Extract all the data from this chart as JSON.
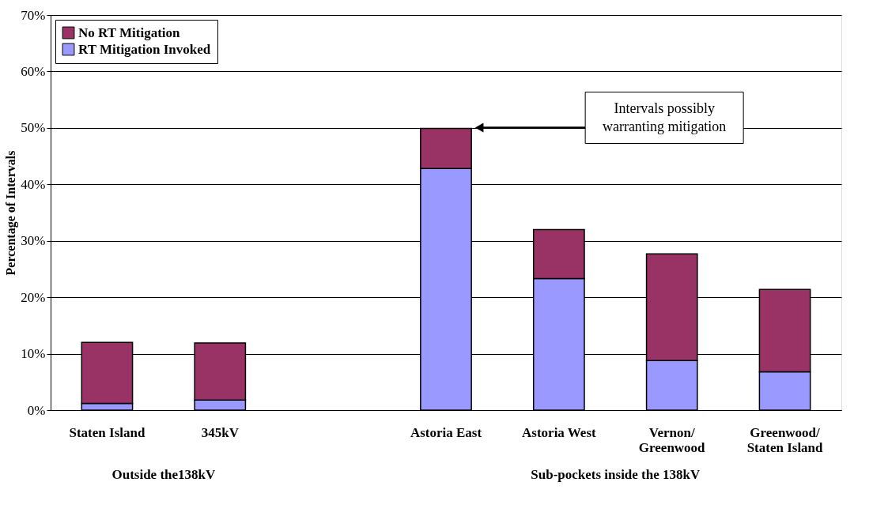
{
  "chart_data": {
    "type": "bar",
    "stacked": true,
    "ylabel": "Percentage of Intervals",
    "categories": [
      "Staten Island",
      "345kV",
      null,
      "Astoria East",
      "Astoria West",
      "Vernon/\nGreenwood",
      "Greenwood/\nStaten Island"
    ],
    "series": [
      {
        "name": "RT Mitigation Invoked",
        "color": "#9999ff",
        "values": [
          1.2,
          1.8,
          null,
          42.8,
          23.3,
          8.8,
          6.8
        ]
      },
      {
        "name": "No RT Mitigation",
        "color": "#993366",
        "values": [
          10.8,
          10.1,
          null,
          7.1,
          8.7,
          18.9,
          14.6
        ]
      }
    ],
    "ylim": [
      0,
      70
    ],
    "yticks": [
      {
        "value": 0,
        "label": "0%"
      },
      {
        "value": 10,
        "label": "10%"
      },
      {
        "value": 20,
        "label": "20%"
      },
      {
        "value": 30,
        "label": "30%"
      },
      {
        "value": 40,
        "label": "40%"
      },
      {
        "value": 50,
        "label": "50%"
      },
      {
        "value": 60,
        "label": "60%"
      },
      {
        "value": 70,
        "label": "70%"
      }
    ],
    "grid": "y",
    "legend": "top left",
    "annotations": [
      "Intervals possibly\nwarranting mitigation",
      "Outside the138kV",
      "Sub-pockets inside the 138kV"
    ]
  }
}
